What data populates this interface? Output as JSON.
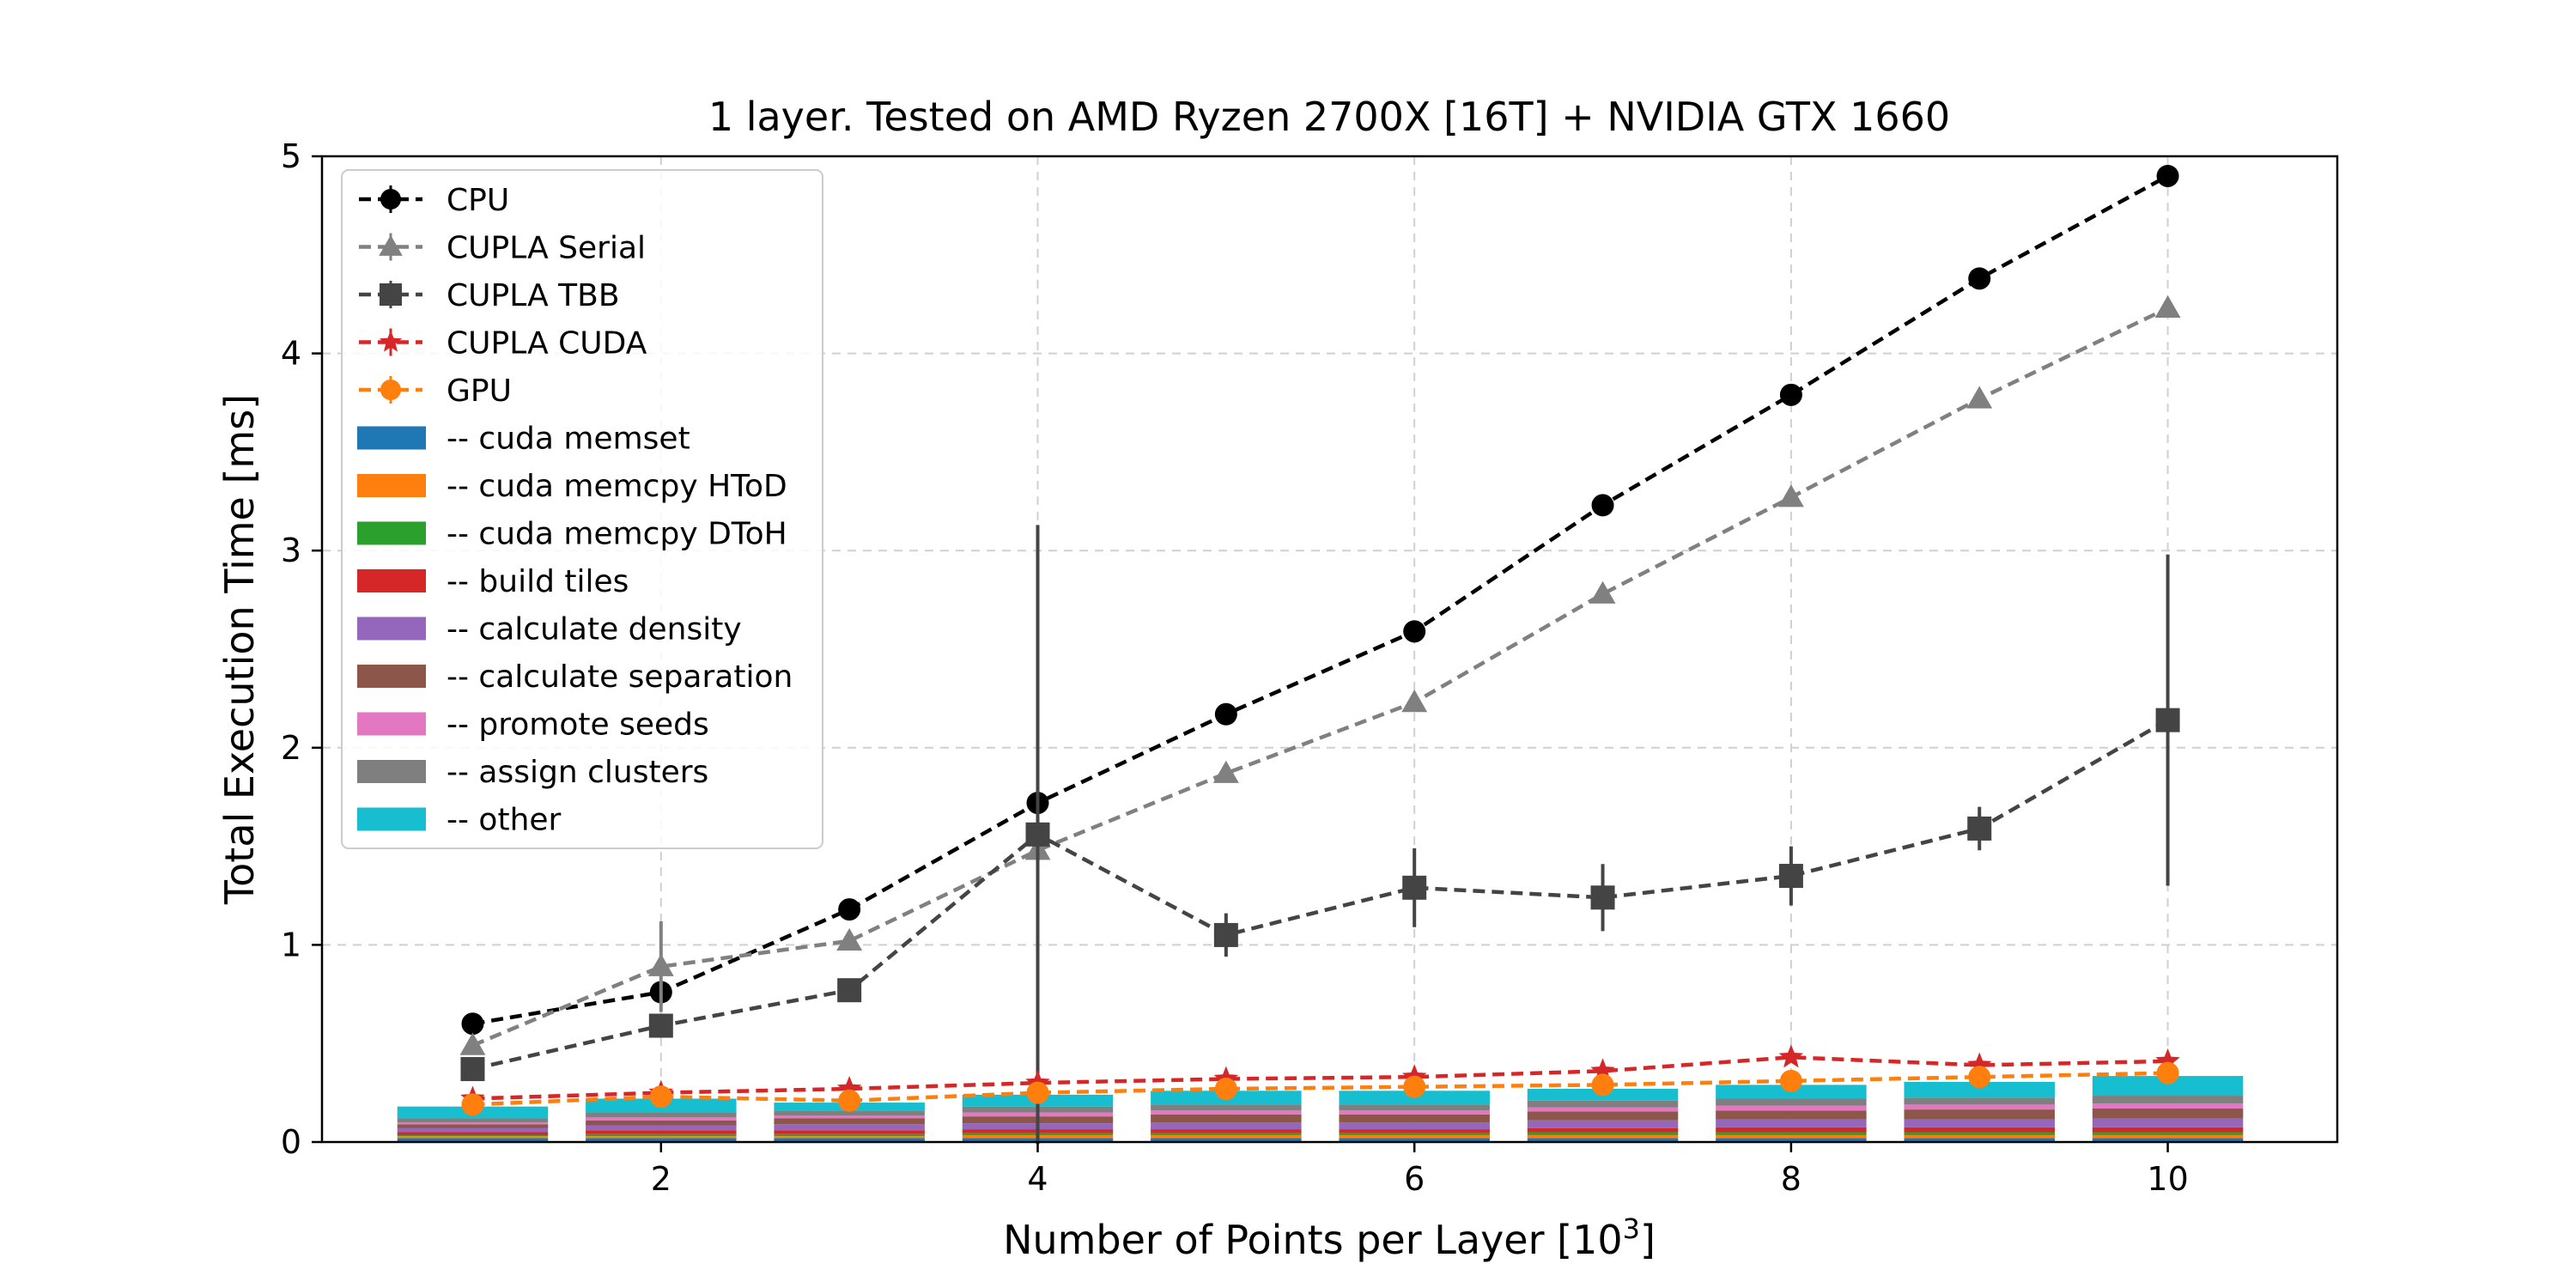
{
  "chart_data": {
    "type": "line",
    "title": "1 layer. Tested on AMD Ryzen 2700X [16T] + NVIDIA GTX 1660",
    "xlabel": "Number of Points per Layer [10",
    "xlabel_sup": "3",
    "xlabel_close": "]",
    "ylabel": "Total Execution Time [ms]",
    "xlim": [
      0.2,
      10.9
    ],
    "ylim": [
      0,
      5
    ],
    "xticks": [
      2,
      4,
      6,
      8,
      10
    ],
    "yticks": [
      0,
      1,
      2,
      3,
      4,
      5
    ],
    "grid": true,
    "legend_position": "upper-left",
    "x": [
      1,
      2,
      3,
      4,
      5,
      6,
      7,
      8,
      9,
      10
    ],
    "series": [
      {
        "name": "CPU",
        "color": "#000000",
        "marker": "circle",
        "values": [
          0.6,
          0.76,
          1.18,
          1.72,
          2.17,
          2.59,
          3.23,
          3.79,
          4.38,
          4.9
        ],
        "err": [
          0,
          0,
          0,
          0,
          0,
          0,
          0,
          0,
          0,
          0
        ]
      },
      {
        "name": "CUPLA Serial",
        "color": "#808080",
        "marker": "triangle",
        "values": [
          0.49,
          0.89,
          1.02,
          1.48,
          1.87,
          2.23,
          2.78,
          3.27,
          3.77,
          4.23
        ],
        "err": [
          0,
          0.23,
          0,
          0,
          0,
          0,
          0,
          0,
          0,
          0
        ]
      },
      {
        "name": "CUPLA TBB",
        "color": "#444444",
        "marker": "square",
        "values": [
          0.37,
          0.59,
          0.77,
          1.56,
          1.05,
          1.29,
          1.24,
          1.35,
          1.59,
          2.14
        ],
        "err": [
          0,
          0,
          0,
          1.57,
          0.11,
          0.2,
          0.17,
          0.15,
          0.11,
          0.84
        ]
      },
      {
        "name": "CUPLA CUDA",
        "color": "#d62728",
        "marker": "star",
        "values": [
          0.22,
          0.25,
          0.27,
          0.3,
          0.32,
          0.33,
          0.36,
          0.43,
          0.39,
          0.41
        ],
        "err": [
          0,
          0,
          0,
          0,
          0,
          0,
          0,
          0,
          0,
          0
        ]
      },
      {
        "name": "GPU",
        "color": "#ff7f0e",
        "marker": "circle",
        "values": [
          0.19,
          0.23,
          0.21,
          0.25,
          0.27,
          0.28,
          0.29,
          0.31,
          0.33,
          0.35
        ],
        "err": [
          0,
          0,
          0,
          0,
          0,
          0,
          0,
          0,
          0,
          0
        ]
      }
    ],
    "stacked_bars": {
      "width": 0.8,
      "components": [
        {
          "name": "-- cuda memset",
          "color": "#1f77b4",
          "values": [
            0.02,
            0.02,
            0.02,
            0.02,
            0.02,
            0.02,
            0.02,
            0.02,
            0.02,
            0.02
          ]
        },
        {
          "name": "-- cuda memcpy HToD",
          "color": "#ff7f0e",
          "values": [
            0.01,
            0.01,
            0.01,
            0.015,
            0.015,
            0.015,
            0.015,
            0.015,
            0.015,
            0.015
          ]
        },
        {
          "name": "-- cuda memcpy DToH",
          "color": "#2ca02c",
          "values": [
            0.005,
            0.01,
            0.01,
            0.01,
            0.01,
            0.01,
            0.015,
            0.015,
            0.015,
            0.015
          ]
        },
        {
          "name": "-- build tiles",
          "color": "#d62728",
          "values": [
            0.015,
            0.02,
            0.02,
            0.02,
            0.02,
            0.02,
            0.02,
            0.025,
            0.025,
            0.025
          ]
        },
        {
          "name": "-- calculate density",
          "color": "#9467bd",
          "values": [
            0.02,
            0.025,
            0.03,
            0.03,
            0.035,
            0.035,
            0.04,
            0.04,
            0.04,
            0.045
          ]
        },
        {
          "name": "-- calculate separation",
          "color": "#8c564b",
          "values": [
            0.02,
            0.025,
            0.03,
            0.035,
            0.04,
            0.04,
            0.045,
            0.045,
            0.05,
            0.05
          ]
        },
        {
          "name": "-- promote seeds",
          "color": "#e377c2",
          "values": [
            0.01,
            0.015,
            0.015,
            0.02,
            0.02,
            0.02,
            0.02,
            0.025,
            0.025,
            0.025
          ]
        },
        {
          "name": "-- assign clusters",
          "color": "#7f7f7f",
          "values": [
            0.02,
            0.025,
            0.025,
            0.03,
            0.03,
            0.03,
            0.035,
            0.035,
            0.035,
            0.04
          ]
        },
        {
          "name": "-- other",
          "color": "#17becf",
          "values": [
            0.06,
            0.07,
            0.04,
            0.06,
            0.07,
            0.07,
            0.06,
            0.07,
            0.08,
            0.1
          ]
        }
      ]
    }
  }
}
